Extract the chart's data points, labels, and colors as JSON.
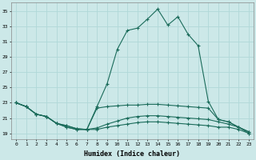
{
  "title": "",
  "xlabel": "Humidex (Indice chaleur)",
  "ylabel": "",
  "bg_color": "#cce8e8",
  "grid_color": "#b0d8d8",
  "line_color": "#1a6b5a",
  "x_ticks": [
    0,
    1,
    2,
    3,
    4,
    5,
    6,
    7,
    8,
    9,
    10,
    11,
    12,
    13,
    14,
    15,
    16,
    17,
    18,
    19,
    20,
    21,
    22,
    23
  ],
  "y_ticks": [
    19,
    21,
    23,
    25,
    27,
    29,
    31,
    33,
    35
  ],
  "ylim": [
    18.2,
    36.2
  ],
  "xlim": [
    -0.5,
    23.5
  ],
  "series": [
    {
      "x": [
        0,
        1,
        2,
        3,
        4,
        5,
        6,
        7,
        8,
        9,
        10,
        11,
        12,
        13,
        14,
        15,
        16,
        17,
        18,
        19,
        20,
        21,
        22,
        23
      ],
      "y": [
        23.0,
        22.5,
        21.5,
        21.2,
        20.3,
        20.0,
        19.6,
        19.5,
        22.5,
        25.5,
        30.0,
        32.5,
        32.8,
        34.0,
        35.3,
        33.2,
        34.3,
        32.0,
        30.5,
        23.2,
        20.8,
        20.5,
        19.8,
        19.2
      ]
    },
    {
      "x": [
        0,
        1,
        2,
        3,
        4,
        5,
        6,
        7,
        8,
        9,
        10,
        11,
        12,
        13,
        14,
        15,
        16,
        17,
        18,
        19,
        20,
        21,
        22,
        23
      ],
      "y": [
        23.0,
        22.5,
        21.5,
        21.2,
        20.3,
        20.0,
        19.6,
        19.5,
        22.3,
        22.5,
        22.6,
        22.7,
        22.7,
        22.8,
        22.8,
        22.7,
        22.6,
        22.5,
        22.4,
        22.3,
        20.8,
        20.5,
        19.8,
        19.2
      ]
    },
    {
      "x": [
        0,
        1,
        2,
        3,
        4,
        5,
        6,
        7,
        8,
        9,
        10,
        11,
        12,
        13,
        14,
        15,
        16,
        17,
        18,
        19,
        20,
        21,
        22,
        23
      ],
      "y": [
        23.0,
        22.5,
        21.5,
        21.2,
        20.3,
        19.8,
        19.5,
        19.5,
        19.7,
        20.2,
        20.6,
        21.0,
        21.2,
        21.3,
        21.3,
        21.2,
        21.1,
        21.0,
        20.9,
        20.8,
        20.5,
        20.2,
        19.8,
        19.0
      ]
    },
    {
      "x": [
        0,
        1,
        2,
        3,
        4,
        5,
        6,
        7,
        8,
        9,
        10,
        11,
        12,
        13,
        14,
        15,
        16,
        17,
        18,
        19,
        20,
        21,
        22,
        23
      ],
      "y": [
        23.0,
        22.5,
        21.5,
        21.2,
        20.3,
        19.8,
        19.5,
        19.5,
        19.5,
        19.8,
        20.0,
        20.2,
        20.4,
        20.5,
        20.5,
        20.4,
        20.3,
        20.2,
        20.1,
        20.0,
        19.8,
        19.8,
        19.5,
        19.0
      ]
    }
  ]
}
